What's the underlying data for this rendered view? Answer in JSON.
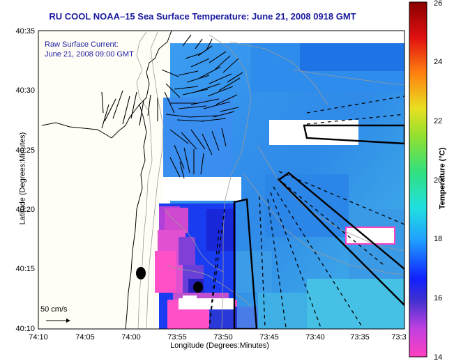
{
  "title": "RU COOL   NOAA–15  Sea Surface Temperature:  June 21, 2008 0918 GMT",
  "legend": {
    "line1": "Raw Surface Current:",
    "line2": "June 21, 2008 09:00 GMT"
  },
  "scale_label": "50 cm/s",
  "axes": {
    "xlabel": "Longitude (Degrees:Minutes)",
    "ylabel": "Latitude (Degrees:Minutes)",
    "xticks": [
      "74:10",
      "74:05",
      "74:00",
      "73:55",
      "73:50",
      "73:45",
      "73:40",
      "73:35",
      "73:3"
    ],
    "yticks": [
      "40:35",
      "40:30",
      "40:25",
      "40:20",
      "40:15",
      "40:10"
    ]
  },
  "colorbar": {
    "label": "Temperature (°C)",
    "ticks": [
      "26",
      "24",
      "22",
      "20",
      "18",
      "16",
      "14"
    ],
    "min": 14,
    "max": 26
  },
  "colors": {
    "title": "#1a1aa0",
    "land": "#fffdf5",
    "warm_sst": "#2a70f0",
    "cool_sst": "#3aa8e8"
  }
}
